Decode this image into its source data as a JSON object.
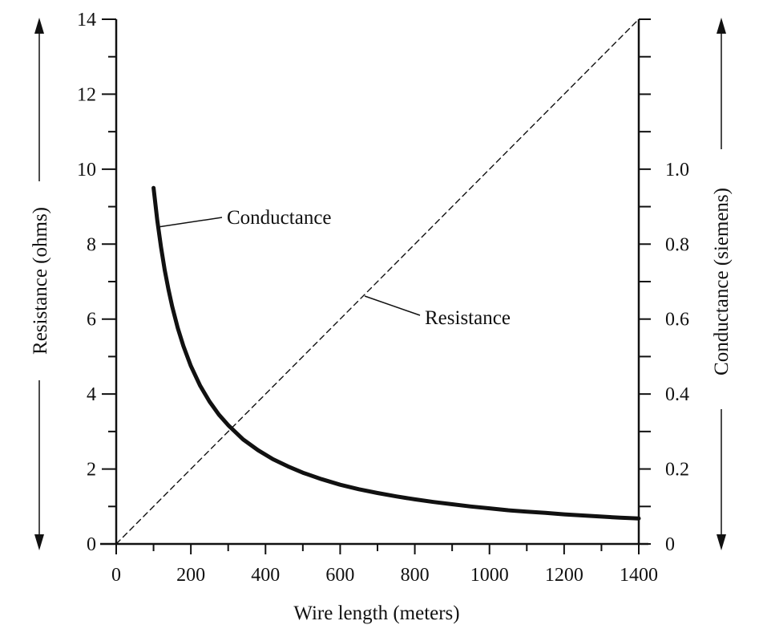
{
  "chart_data": {
    "type": "line",
    "xlabel": "Wire length (meters)",
    "ylabel_left": "Resistance (ohms)",
    "ylabel_right": "Conductance (siemens)",
    "xlim": [
      0,
      1400
    ],
    "ylim_left": [
      0,
      14
    ],
    "ylim_right": [
      0,
      1.4
    ],
    "x_ticks": [
      0,
      200,
      400,
      600,
      800,
      1000,
      1200,
      1400
    ],
    "y_left_ticks": [
      0,
      2,
      4,
      6,
      8,
      10,
      12,
      14
    ],
    "y_right_ticks": [
      0,
      0.2,
      0.4,
      0.6,
      0.8,
      1.0
    ],
    "x_tick_labels": [
      "0",
      "200",
      "400",
      "600",
      "800",
      "1000",
      "1200",
      "1400"
    ],
    "y_left_tick_labels": [
      "0",
      "2",
      "4",
      "6",
      "8",
      "10",
      "12",
      "14"
    ],
    "y_right_tick_labels": [
      "0",
      "0.2",
      "0.4",
      "0.6",
      "0.8",
      "1.0"
    ],
    "grid": false,
    "series": [
      {
        "name": "Resistance",
        "axis": "left",
        "style": "dashed",
        "color": "#111111",
        "x": [
          0,
          1400
        ],
        "y": [
          0,
          14
        ]
      },
      {
        "name": "Conductance",
        "axis": "right",
        "style": "solid-thick",
        "color": "#111111",
        "x": [
          100,
          110,
          120,
          130,
          140,
          150,
          165,
          180,
          200,
          225,
          250,
          275,
          300,
          340,
          380,
          420,
          460,
          500,
          550,
          600,
          650,
          700,
          750,
          800,
          850,
          900,
          950,
          1000,
          1050,
          1100,
          1150,
          1200,
          1250,
          1300,
          1350,
          1400
        ],
        "y": [
          0.95,
          0.864,
          0.792,
          0.731,
          0.679,
          0.633,
          0.576,
          0.528,
          0.475,
          0.422,
          0.38,
          0.345,
          0.317,
          0.279,
          0.25,
          0.226,
          0.207,
          0.19,
          0.173,
          0.158,
          0.146,
          0.136,
          0.127,
          0.119,
          0.112,
          0.106,
          0.1,
          0.095,
          0.09,
          0.086,
          0.083,
          0.079,
          0.076,
          0.073,
          0.07,
          0.068
        ]
      }
    ],
    "annotations": {
      "conductance_label": "Conductance",
      "resistance_label": "Resistance"
    }
  }
}
